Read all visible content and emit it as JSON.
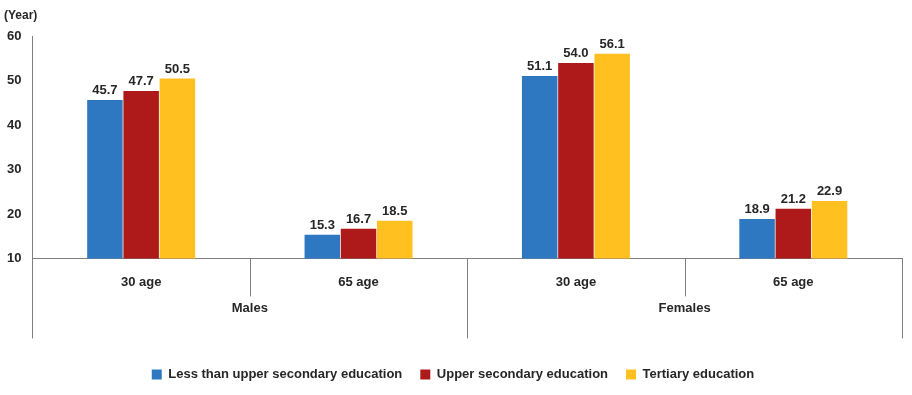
{
  "chart_data": {
    "type": "bar",
    "y_label": "(Year)",
    "categories": [
      "30 age",
      "65 age",
      "30 age",
      "65 age"
    ],
    "category_groups": [
      "Males",
      "Females"
    ],
    "series": [
      {
        "name": "Less than upper secondary education",
        "color": "#2E78C2",
        "values": [
          45.7,
          15.3,
          51.1,
          18.9
        ],
        "value_labels": [
          "45.7",
          "15.3",
          "51.1",
          "18.9"
        ]
      },
      {
        "name": "Upper secondary education",
        "color": "#AE1A1A",
        "values": [
          47.7,
          16.7,
          54.0,
          21.2
        ],
        "value_labels": [
          "47.7",
          "16.7",
          "54.0",
          "21.2"
        ]
      },
      {
        "name": "Tertiary education",
        "color": "#FFC020",
        "values": [
          50.5,
          18.5,
          56.1,
          22.9
        ],
        "value_labels": [
          "50.5",
          "18.5",
          "56.1",
          "22.9"
        ]
      }
    ],
    "ylim": [
      10,
      60
    ],
    "yticks": [
      10,
      20,
      30,
      40,
      50,
      60
    ],
    "grid": false,
    "legend": "bottom",
    "data_labels": true
  }
}
